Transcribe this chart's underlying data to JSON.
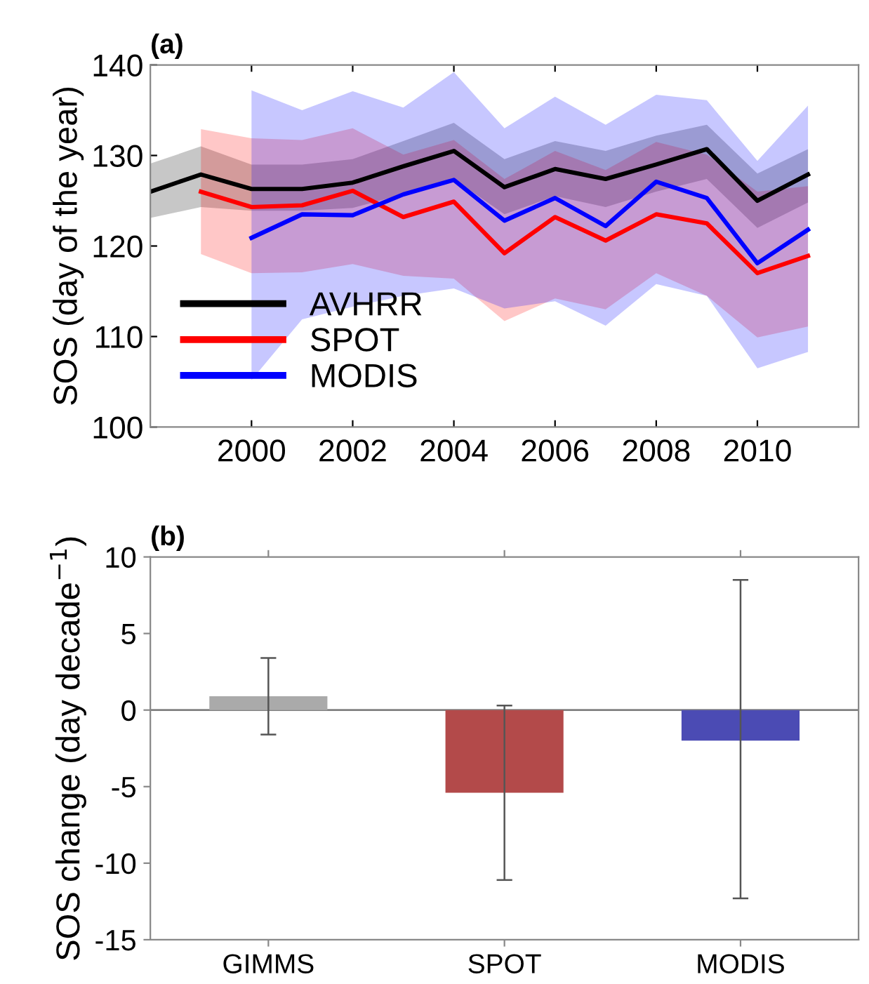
{
  "chart_data": [
    {
      "type": "line",
      "title": "(a)",
      "ylabel": "SOS (day of the year)",
      "xlim": [
        1998,
        2012
      ],
      "xticks": [
        2000,
        2002,
        2004,
        2006,
        2008,
        2010
      ],
      "ylim": [
        100,
        140
      ],
      "yticks": [
        100,
        110,
        120,
        130,
        140
      ],
      "legend": "bottom left",
      "grid": false,
      "series": [
        {
          "name": "AVHRR",
          "color": "#000000",
          "x": [
            1998,
            1999,
            2000,
            2001,
            2002,
            2003,
            2004,
            2005,
            2006,
            2007,
            2008,
            2009,
            2010,
            2011
          ],
          "values": [
            126.0,
            127.9,
            126.3,
            126.3,
            127.0,
            128.8,
            130.5,
            126.5,
            128.5,
            127.4,
            129.0,
            130.7,
            125.0,
            127.9
          ],
          "lower": [
            123.1,
            124.3,
            123.9,
            123.9,
            124.2,
            125.7,
            127.4,
            123.5,
            125.5,
            124.3,
            126.0,
            127.4,
            122.0,
            124.8
          ],
          "upper": [
            129.1,
            131.0,
            129.0,
            129.0,
            129.6,
            131.6,
            133.6,
            129.6,
            131.6,
            130.5,
            132.2,
            133.4,
            128.0,
            130.7
          ]
        },
        {
          "name": "SPOT",
          "color": "#ff0000",
          "x": [
            1999,
            2000,
            2001,
            2002,
            2003,
            2004,
            2005,
            2006,
            2007,
            2008,
            2009,
            2010,
            2011
          ],
          "values": [
            126.0,
            124.3,
            124.5,
            126.1,
            123.2,
            124.9,
            119.2,
            123.2,
            120.6,
            123.5,
            122.5,
            117.0,
            118.9
          ],
          "lower": [
            119.1,
            117.0,
            117.1,
            118.0,
            116.7,
            116.4,
            111.7,
            114.2,
            113.0,
            117.0,
            114.5,
            109.9,
            111.1
          ],
          "upper": [
            132.9,
            131.9,
            131.7,
            133.0,
            130.1,
            131.7,
            127.4,
            130.5,
            128.4,
            131.5,
            130.1,
            126.0,
            126.6
          ]
        },
        {
          "name": "MODIS",
          "color": "#0000ff",
          "x": [
            2000,
            2001,
            2002,
            2003,
            2004,
            2005,
            2006,
            2007,
            2008,
            2009,
            2010,
            2011
          ],
          "values": [
            120.9,
            123.5,
            123.4,
            125.7,
            127.3,
            122.8,
            125.3,
            122.2,
            127.1,
            125.3,
            118.1,
            121.8
          ],
          "lower": [
            105.2,
            111.9,
            113.3,
            114.5,
            115.3,
            113.1,
            113.9,
            111.2,
            115.8,
            114.5,
            106.5,
            108.3
          ],
          "upper": [
            137.2,
            135.0,
            137.1,
            135.3,
            139.2,
            133.0,
            136.5,
            133.4,
            136.7,
            136.1,
            129.4,
            135.5
          ]
        }
      ]
    },
    {
      "type": "bar",
      "title": "(b)",
      "ylabel": "SOS change (day decade$^{−1}$)",
      "categories": [
        "GIMMS",
        "SPOT",
        "MODIS"
      ],
      "values": [
        0.9,
        -5.4,
        -2.0
      ],
      "colors": [
        "#aaaaaa",
        "#b34a4a",
        "#4b4bb4"
      ],
      "errors": [
        [
          -1.6,
          3.4
        ],
        [
          -11.1,
          0.3
        ],
        [
          -12.3,
          8.5
        ]
      ],
      "ylim": [
        -15,
        10
      ],
      "yticks": [
        -15,
        -10,
        -5,
        0,
        5,
        10
      ],
      "grid": false,
      "ref_lines": [
        {
          "axis": "y",
          "value": 0,
          "color": "#808080"
        }
      ]
    }
  ]
}
